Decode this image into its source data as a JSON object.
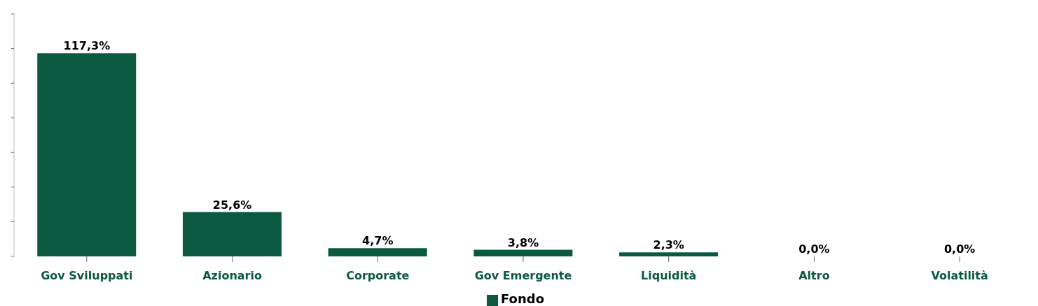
{
  "chart_data": {
    "type": "bar",
    "categories": [
      "Gov Sviluppati",
      "Azionario",
      "Corporate",
      "Gov Emergente",
      "Liquidità",
      "Altro",
      "Volatilità"
    ],
    "series": [
      {
        "name": "Fondo",
        "color": "#0a5940",
        "values": [
          117.3,
          25.6,
          4.7,
          3.8,
          2.3,
          0.0,
          0.0
        ],
        "value_labels": [
          "117,3%",
          "25,6%",
          "4,7%",
          "3,8%",
          "2,3%",
          "0,0%",
          "0,0%"
        ]
      }
    ],
    "ylim": [
      0,
      140
    ],
    "yticks": [
      {
        "value": 0,
        "label": null
      },
      {
        "value": 20,
        "label": null
      },
      {
        "value": 40,
        "label": null
      },
      {
        "value": 60,
        "label": null
      },
      {
        "value": 80,
        "label": null
      },
      {
        "value": 100,
        "label": null
      },
      {
        "value": 120,
        "label": null
      },
      {
        "value": 140,
        "label": null
      }
    ],
    "tick_labels": "x",
    "grid": false,
    "legend": "bottom"
  }
}
